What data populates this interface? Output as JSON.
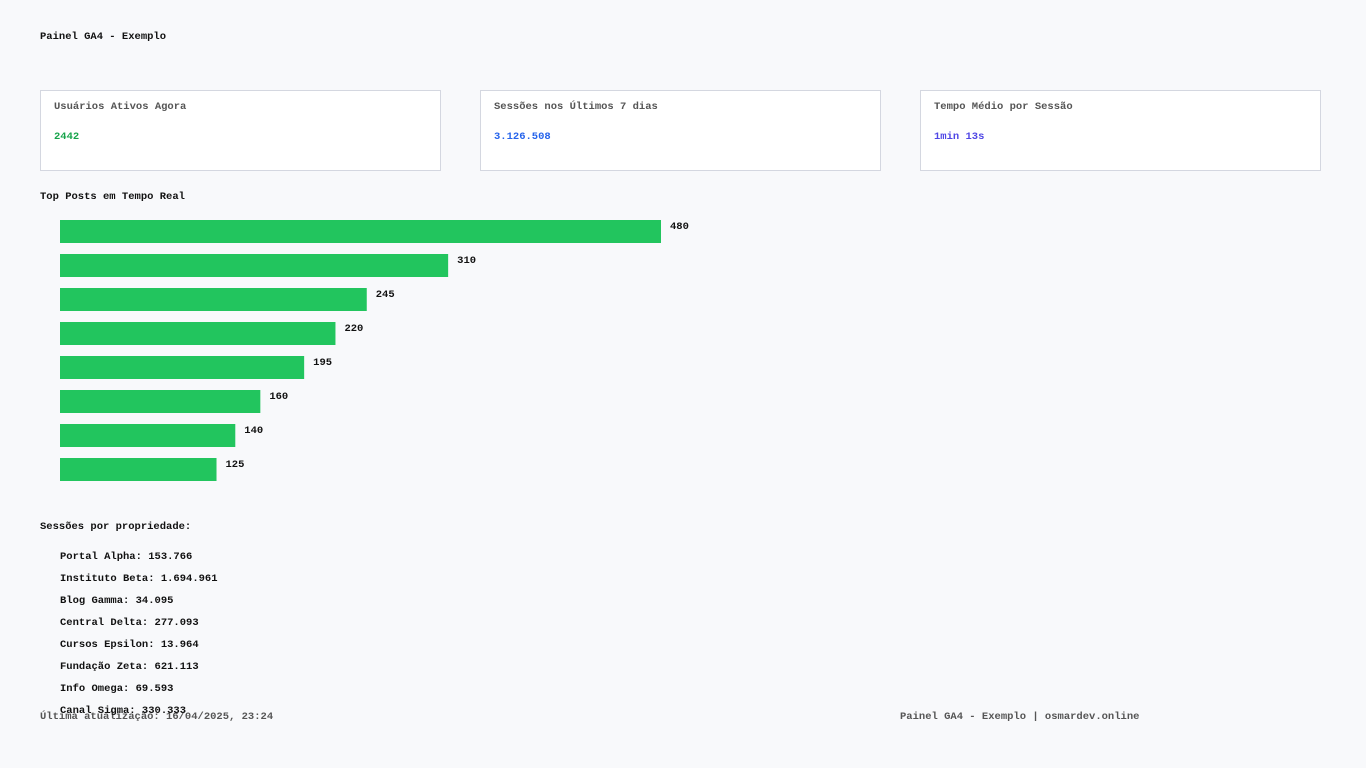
{
  "header": {
    "title": "Painel GA4 - Exemplo"
  },
  "cards": [
    {
      "label": "Usuários Ativos Agora",
      "value": 2442,
      "color": "#16a34a"
    },
    {
      "label": "Sessões nos Últimos 7 dias",
      "value": "3.126.508",
      "color": "#2563eb"
    },
    {
      "label": "Tempo Médio por Sessão",
      "value": "1min 13s",
      "color": "#4f46e5"
    }
  ],
  "chart_data": {
    "type": "bar",
    "orientation": "horizontal",
    "title": "Top Posts em Tempo Real",
    "values": [
      480,
      310,
      245,
      220,
      195,
      160,
      140,
      125
    ],
    "color": "#22c55e"
  },
  "sessions": {
    "title": "Sessões por propriedade:",
    "items": [
      "Portal Alpha: 153.766",
      "Instituto Beta: 1.694.961",
      "Blog Gamma: 34.095",
      "Central Delta: 277.093",
      "Cursos Epsilon: 13.964",
      "Fundação Zeta: 621.113",
      "Info Omega: 69.593",
      "Canal Sigma: 330.333"
    ]
  },
  "footer": {
    "left": "Última atualização: 16/04/2025, 23:24",
    "right": "Painel GA4 - Exemplo | osmardev.online"
  }
}
